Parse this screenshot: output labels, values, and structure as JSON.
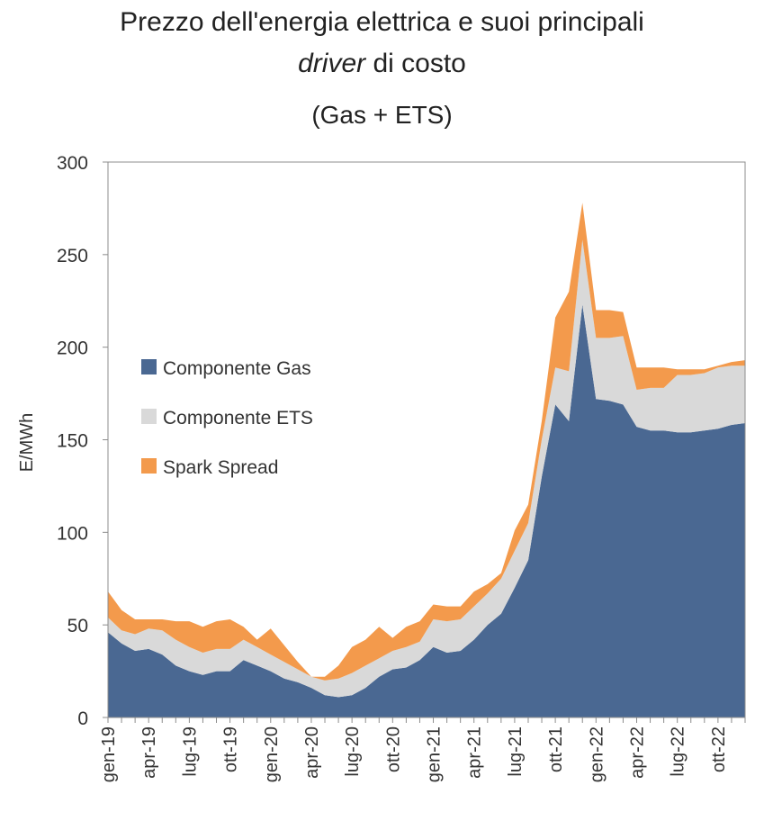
{
  "title_line1": "Prezzo dell'energia elettrica e suoi principali",
  "title_line2_italic": "driver",
  "title_line2_rest": " di costo",
  "subtitle": "(Gas + ETS)",
  "chart_data": {
    "type": "area",
    "title": "Prezzo dell'energia elettrica e suoi principali driver di costo",
    "subtitle": "(Gas + ETS)",
    "ylabel": "E/MWh",
    "xlabel": "",
    "ylim": [
      0,
      300
    ],
    "yticks": [
      0,
      50,
      100,
      150,
      200,
      250,
      300
    ],
    "x_tick_labels": [
      "gen-19",
      "apr-19",
      "lug-19",
      "ott-19",
      "gen-20",
      "apr-20",
      "lug-20",
      "ott-20",
      "gen-21",
      "apr-21",
      "lug-21",
      "ott-21",
      "gen-22",
      "apr-22",
      "lug-22",
      "ott-22"
    ],
    "x_tick_every": 3,
    "grid": false,
    "legend_position": "left-middle",
    "stacked": true,
    "colors": {
      "Componente Gas": "#4a6892",
      "Componente ETS": "#d9d9d9",
      "Spark Spread": "#f39a4c"
    },
    "months": [
      "gen-19",
      "feb-19",
      "mar-19",
      "apr-19",
      "mag-19",
      "giu-19",
      "lug-19",
      "ago-19",
      "set-19",
      "ott-19",
      "nov-19",
      "dic-19",
      "gen-20",
      "feb-20",
      "mar-20",
      "apr-20",
      "mag-20",
      "giu-20",
      "lug-20",
      "ago-20",
      "set-20",
      "ott-20",
      "nov-20",
      "dic-20",
      "gen-21",
      "feb-21",
      "mar-21",
      "apr-21",
      "mag-21",
      "giu-21",
      "lug-21",
      "ago-21",
      "set-21",
      "ott-21",
      "nov-21",
      "dic-21",
      "gen-22",
      "feb-22",
      "mar-22",
      "apr-22",
      "mag-22",
      "giu-22",
      "lug-22",
      "ago-22",
      "set-22",
      "ott-22",
      "nov-22",
      "dic-22"
    ],
    "series": [
      {
        "name": "Componente Gas",
        "values": [
          46,
          40,
          36,
          37,
          34,
          28,
          25,
          23,
          25,
          25,
          31,
          28,
          25,
          21,
          19,
          16,
          12,
          11,
          12,
          16,
          22,
          26,
          27,
          31,
          38,
          35,
          36,
          42,
          50,
          56,
          70,
          85,
          130,
          169,
          160,
          223,
          172,
          171,
          169,
          157,
          155,
          155,
          154,
          154,
          155,
          156,
          158,
          159
        ]
      },
      {
        "name": "Componente ETS",
        "values": [
          8,
          7,
          9,
          11,
          13,
          14,
          13,
          12,
          12,
          12,
          11,
          10,
          9,
          9,
          7,
          6,
          8,
          10,
          12,
          12,
          10,
          10,
          11,
          10,
          15,
          17,
          17,
          18,
          17,
          19,
          20,
          20,
          20,
          20,
          27,
          35,
          33,
          34,
          37,
          20,
          23,
          23,
          31,
          31,
          31,
          33,
          32,
          31
        ]
      },
      {
        "name": "Spark Spread",
        "values": [
          14,
          11,
          8,
          5,
          6,
          10,
          14,
          14,
          15,
          16,
          7,
          4,
          14,
          9,
          4,
          0,
          2,
          7,
          14,
          14,
          17,
          7,
          11,
          11,
          8,
          8,
          7,
          8,
          5,
          3,
          11,
          10,
          10,
          27,
          43,
          20,
          15,
          15,
          13,
          12,
          11,
          11,
          3,
          3,
          2,
          1,
          2,
          3
        ]
      }
    ]
  }
}
